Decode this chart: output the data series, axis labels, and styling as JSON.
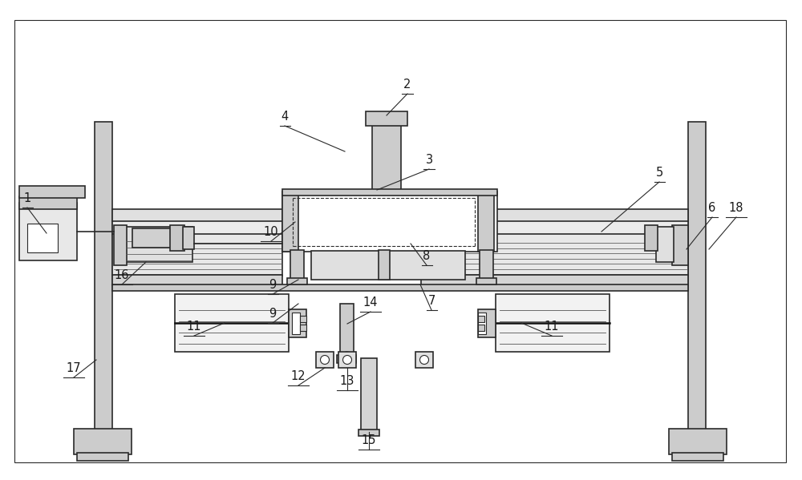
{
  "bg_color": "#ffffff",
  "line_color": "#2a2a2a",
  "gray_light": "#cccccc",
  "gray_med": "#999999",
  "gray_dark": "#555555",
  "label_color": "#1a1a1a",
  "fig_width": 10.0,
  "fig_height": 5.99,
  "dpi": 100
}
